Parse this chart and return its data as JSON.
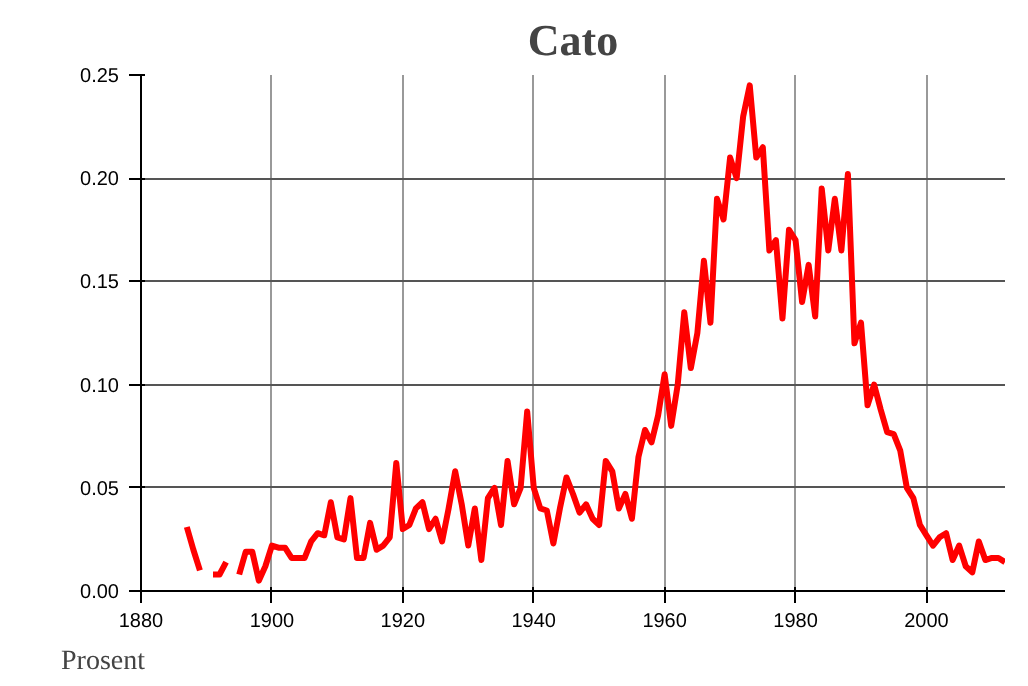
{
  "chart_data": {
    "type": "line",
    "title": "Cato",
    "ylabel": "Prosent",
    "x": [
      1887,
      1888,
      1889,
      1890,
      1891,
      1892,
      1893,
      1894,
      1895,
      1896,
      1897,
      1898,
      1899,
      1900,
      1901,
      1902,
      1903,
      1904,
      1905,
      1906,
      1907,
      1908,
      1909,
      1910,
      1911,
      1912,
      1913,
      1914,
      1915,
      1916,
      1917,
      1918,
      1919,
      1920,
      1921,
      1922,
      1923,
      1924,
      1925,
      1926,
      1927,
      1928,
      1929,
      1930,
      1931,
      1932,
      1933,
      1934,
      1935,
      1936,
      1937,
      1938,
      1939,
      1940,
      1941,
      1942,
      1943,
      1944,
      1945,
      1946,
      1947,
      1948,
      1949,
      1950,
      1951,
      1952,
      1953,
      1954,
      1955,
      1956,
      1957,
      1958,
      1959,
      1960,
      1961,
      1962,
      1963,
      1964,
      1965,
      1966,
      1967,
      1968,
      1969,
      1970,
      1971,
      1972,
      1973,
      1974,
      1975,
      1976,
      1977,
      1978,
      1979,
      1980,
      1981,
      1982,
      1983,
      1984,
      1985,
      1986,
      1987,
      1988,
      1989,
      1990,
      1991,
      1992,
      1993,
      1994,
      1995,
      1996,
      1997,
      1998,
      1999,
      2000,
      2001,
      2002,
      2003,
      2004,
      2005,
      2006,
      2007,
      2008,
      2009,
      2010,
      2011,
      2012
    ],
    "series": [
      {
        "color": "#ff0000",
        "values": [
          0.031,
          0.02,
          0.01,
          null,
          0.008,
          0.008,
          0.014,
          null,
          0.008,
          0.019,
          0.019,
          0.005,
          0.012,
          0.022,
          0.021,
          0.021,
          0.016,
          0.016,
          0.016,
          0.024,
          0.028,
          0.027,
          0.043,
          0.026,
          0.025,
          0.045,
          0.016,
          0.016,
          0.033,
          0.02,
          0.022,
          0.026,
          0.062,
          0.03,
          0.032,
          0.04,
          0.043,
          0.03,
          0.035,
          0.024,
          0.04,
          0.058,
          0.042,
          0.022,
          0.04,
          0.015,
          0.045,
          0.05,
          0.032,
          0.063,
          0.042,
          0.05,
          0.087,
          0.05,
          0.04,
          0.039,
          0.023,
          0.04,
          0.055,
          0.047,
          0.038,
          0.042,
          0.035,
          0.032,
          0.063,
          0.058,
          0.04,
          0.047,
          0.035,
          0.065,
          0.078,
          0.072,
          0.085,
          0.105,
          0.08,
          0.1,
          0.135,
          0.108,
          0.125,
          0.16,
          0.13,
          0.19,
          0.18,
          0.21,
          0.2,
          0.23,
          0.245,
          0.21,
          0.215,
          0.165,
          0.17,
          0.132,
          0.175,
          0.17,
          0.14,
          0.158,
          0.133,
          0.195,
          0.165,
          0.19,
          0.165,
          0.202,
          0.12,
          0.13,
          0.09,
          0.1,
          0.088,
          0.077,
          0.076,
          0.068,
          0.05,
          0.045,
          0.032,
          0.027,
          0.022,
          0.026,
          0.028,
          0.015,
          0.022,
          0.012,
          0.009,
          0.024,
          0.015,
          0.016,
          0.016,
          0.014
        ]
      }
    ],
    "xlim": [
      1880,
      2012
    ],
    "ylim": [
      0,
      0.25
    ],
    "xticks": [
      1880,
      1900,
      1920,
      1940,
      1960,
      1980,
      2000
    ],
    "yticks": [
      {
        "value": 0,
        "label": "0.00"
      },
      {
        "value": 0.05,
        "label": "0.05"
      },
      {
        "value": 0.1,
        "label": "0.10"
      },
      {
        "value": 0.15,
        "label": "0.15"
      },
      {
        "value": 0.2,
        "label": "0.20"
      },
      {
        "value": 0.25,
        "label": "0.25"
      }
    ],
    "grid": true,
    "line_style": "solid"
  }
}
